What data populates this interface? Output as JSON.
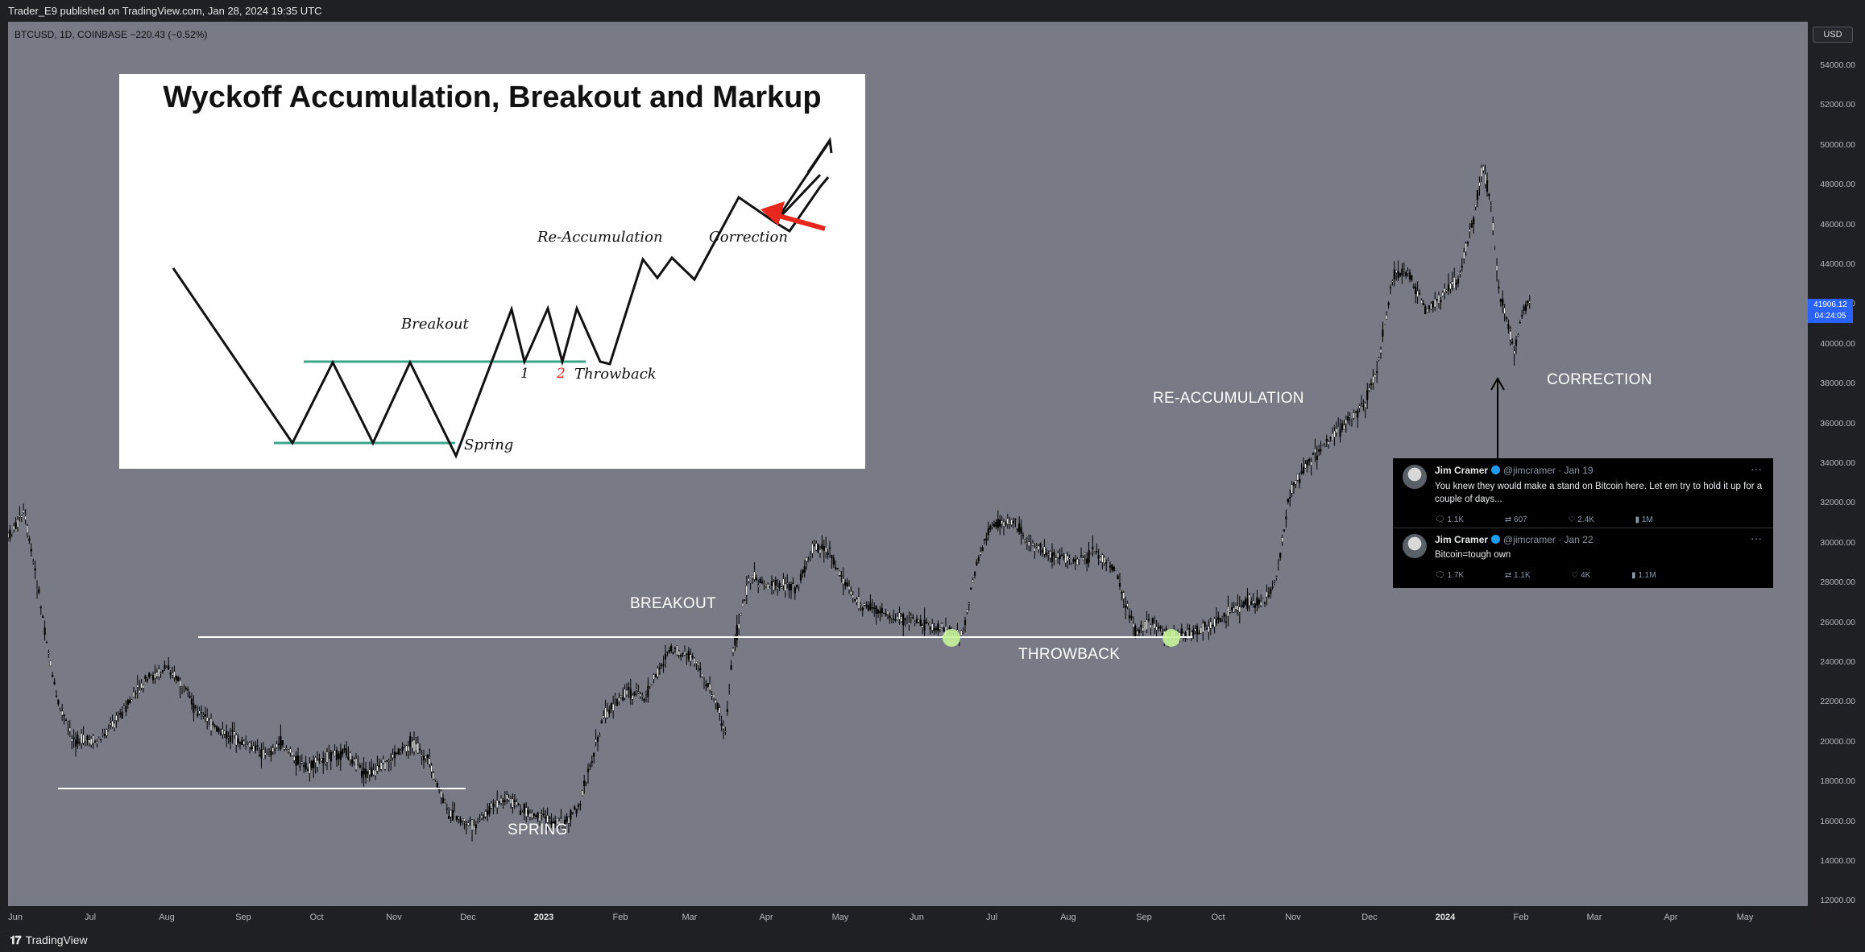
{
  "header": {
    "published": "Trader_E9 published on TradingView.com, Jan 28, 2024 19:35 UTC"
  },
  "symbol": {
    "info": "BTCUSD, 1D, COINBASE  −220.43 (−0.52%)"
  },
  "price_axis": {
    "currency": "USD",
    "ticks": [
      "54000.00",
      "52000.00",
      "50000.00",
      "48000.00",
      "46000.00",
      "44000.00",
      "42000.00",
      "40000.00",
      "38000.00",
      "36000.00",
      "34000.00",
      "32000.00",
      "30000.00",
      "28000.00",
      "26000.00",
      "24000.00",
      "22000.00",
      "20000.00",
      "18000.00",
      "16000.00",
      "14000.00",
      "12000.00"
    ],
    "current_price": "41906.12",
    "countdown": "04:24:05"
  },
  "time_axis": {
    "ticks": [
      {
        "label": "Jun",
        "bold": false
      },
      {
        "label": "Jul",
        "bold": false
      },
      {
        "label": "Aug",
        "bold": false
      },
      {
        "label": "Sep",
        "bold": false
      },
      {
        "label": "Oct",
        "bold": false
      },
      {
        "label": "Nov",
        "bold": false
      },
      {
        "label": "Dec",
        "bold": false
      },
      {
        "label": "2023",
        "bold": true
      },
      {
        "label": "Feb",
        "bold": false
      },
      {
        "label": "Mar",
        "bold": false
      },
      {
        "label": "Apr",
        "bold": false
      },
      {
        "label": "May",
        "bold": false
      },
      {
        "label": "Jun",
        "bold": false
      },
      {
        "label": "Jul",
        "bold": false
      },
      {
        "label": "Aug",
        "bold": false
      },
      {
        "label": "Sep",
        "bold": false
      },
      {
        "label": "Oct",
        "bold": false
      },
      {
        "label": "Nov",
        "bold": false
      },
      {
        "label": "Dec",
        "bold": false
      },
      {
        "label": "2024",
        "bold": true
      },
      {
        "label": "Feb",
        "bold": false
      },
      {
        "label": "Mar",
        "bold": false
      },
      {
        "label": "Apr",
        "bold": false
      },
      {
        "label": "May",
        "bold": false
      }
    ]
  },
  "annotations": {
    "spring": "SPRING",
    "breakout": "BREAKOUT",
    "throwback": "THROWBACK",
    "reaccumulation": "RE-ACCUMULATION",
    "correction": "CORRECTION"
  },
  "inset": {
    "title": "Wyckoff Accumulation, Breakout and Markup",
    "labels": {
      "breakout": "Breakout",
      "spring": "Spring",
      "throwback": "Throwback",
      "reaccumulation": "Re-Accumulation",
      "correction": "Correction",
      "num1": "1",
      "num2": "2"
    }
  },
  "tweets": [
    {
      "name": "Jim Cramer",
      "handle_date": "@jimcramer · Jan 19",
      "text": "You knew they would make a stand on Bitcoin here. Let em try to hold it up for a couple of days...",
      "replies": "1.1K",
      "retweets": "607",
      "likes": "2.4K",
      "views": "1M"
    },
    {
      "name": "Jim Cramer",
      "handle_date": "@jimcramer · Jan 22",
      "text": "Bitcoin=tough own",
      "replies": "1.7K",
      "retweets": "1.1K",
      "likes": "4K",
      "views": "1.1M"
    }
  ],
  "footer": {
    "brand": "TradingView"
  },
  "colors": {
    "chart_bg": "#787b86",
    "accent_blue": "#2962ff",
    "teal_line": "#3aa58a",
    "red_arrow": "#e8281c"
  }
}
